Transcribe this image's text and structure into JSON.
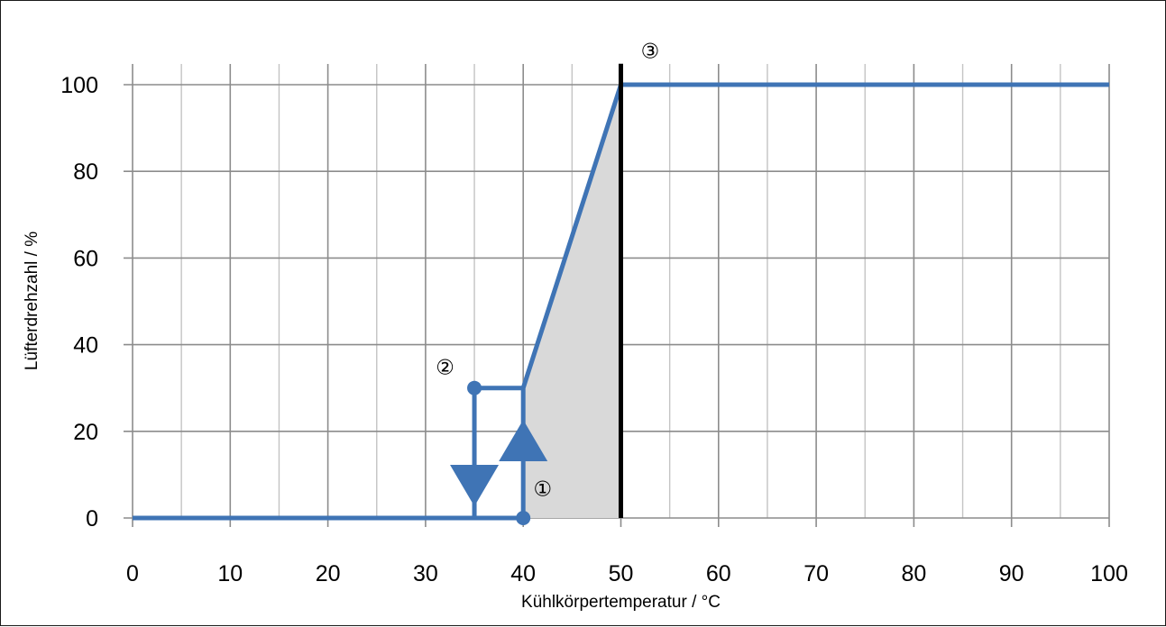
{
  "chart_data": {
    "type": "line",
    "title": "",
    "xlabel": "Kühlkörpertemperatur / °C",
    "ylabel": "Lüfterdrehzahl / %",
    "xlim": [
      0,
      100
    ],
    "ylim": [
      0,
      100
    ],
    "x_ticks": [
      "0",
      "10",
      "20",
      "30",
      "40",
      "50",
      "60",
      "70",
      "80",
      "90",
      "100"
    ],
    "y_ticks": [
      "0",
      "20",
      "40",
      "60",
      "80",
      "100"
    ],
    "grid": true,
    "minor_x_step": 5,
    "series": [
      {
        "x": [
          0,
          35,
          40,
          40,
          50,
          100
        ],
        "y": [
          0,
          0,
          0,
          30,
          100,
          100
        ],
        "color": "#3f74b5"
      }
    ],
    "hysteresis_segment": {
      "x": [
        35,
        35,
        40
      ],
      "y": [
        0,
        30,
        30
      ]
    },
    "points": [
      {
        "x": 40,
        "y": 0
      },
      {
        "x": 35,
        "y": 30
      }
    ],
    "arrows": [
      {
        "x": 35,
        "y_from": 30,
        "y_to": 0,
        "direction": "down"
      },
      {
        "x": 40,
        "y_from": 0,
        "y_to": 30,
        "direction": "up"
      }
    ],
    "shaded_region": {
      "x": [
        40,
        40,
        50,
        50
      ],
      "y": [
        0,
        30,
        100,
        0
      ],
      "color": "#d9d9d9"
    },
    "vertical_line": {
      "x": 50,
      "y_top": 104,
      "color": "#000000"
    },
    "annotations": [
      {
        "text": "①",
        "x": 42,
        "y": 7
      },
      {
        "text": "②",
        "x": 32,
        "y": 35
      },
      {
        "text": "③",
        "x": 53,
        "y": 108
      }
    ]
  }
}
